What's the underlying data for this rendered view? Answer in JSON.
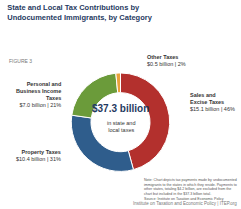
{
  "chart_data": {
    "type": "pie",
    "title": "State and Local Tax Contributions by Undocumented Immigrants, by Category",
    "subtitle": "FIGURE 3",
    "categories": [
      "Sales and Excise Taxes",
      "Property Taxes",
      "Personal and Business Income Taxes",
      "Other Taxes"
    ],
    "values": [
      15.1,
      10.4,
      7.0,
      0.5
    ],
    "value_labels": [
      "$15.1 billion | 46%",
      "$10.4 billion | 31%",
      "$7.0 billion | 21%",
      "$0.5 billion | 2%"
    ],
    "colors": [
      "#b3302d",
      "#2f5d8c",
      "#6b9b3a",
      "#e9a23b"
    ],
    "data_labels": true,
    "center_text": {
      "label": "$37.3 billion",
      "caption": "in state and local taxes"
    },
    "note": "Note: Chart depicts tax payments made by undocumented immigrants to the states in which they reside. Payments to other states, totaling $4.2 billion, are excluded from the chart but included in the $37.3 billion total.",
    "source": "Source: Institute on Taxation and Economic Policy",
    "footer": "Institute on Taxation and Economic Policy | ITEP.org"
  }
}
